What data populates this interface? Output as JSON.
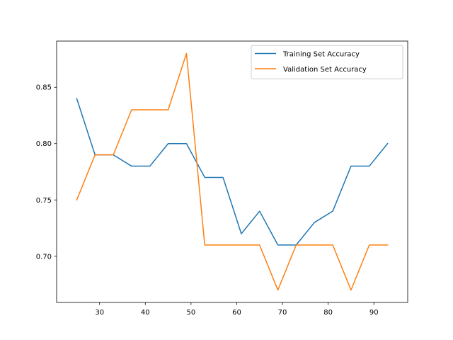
{
  "chart_data": {
    "type": "line",
    "title": "",
    "xlabel": "",
    "ylabel": "",
    "x": [
      25,
      29,
      33,
      37,
      41,
      45,
      49,
      53,
      57,
      61,
      65,
      69,
      73,
      77,
      81,
      85,
      89,
      93
    ],
    "xlim": [
      20.6,
      97.4
    ],
    "ylim": [
      0.659,
      0.891
    ],
    "xticks": [
      30,
      40,
      50,
      60,
      70,
      80,
      90
    ],
    "yticks": [
      0.7,
      0.75,
      0.8,
      0.85
    ],
    "xtick_labels": [
      "30",
      "40",
      "50",
      "60",
      "70",
      "80",
      "90"
    ],
    "ytick_labels": [
      "0.70",
      "0.75",
      "0.80",
      "0.85"
    ],
    "grid": false,
    "legend_position": "upper right",
    "series": [
      {
        "name": "Training Set Accuracy",
        "color": "#1f77b4",
        "values": [
          0.84,
          0.79,
          0.79,
          0.78,
          0.78,
          0.8,
          0.8,
          0.77,
          0.77,
          0.72,
          0.74,
          0.71,
          0.71,
          0.73,
          0.74,
          0.78,
          0.78,
          0.8
        ]
      },
      {
        "name": "Validation Set Accuracy",
        "color": "#ff7f0e",
        "values": [
          0.75,
          0.79,
          0.79,
          0.83,
          0.83,
          0.83,
          0.88,
          0.71,
          0.71,
          0.71,
          0.71,
          0.67,
          0.71,
          0.71,
          0.71,
          0.67,
          0.71,
          0.71
        ]
      }
    ]
  }
}
